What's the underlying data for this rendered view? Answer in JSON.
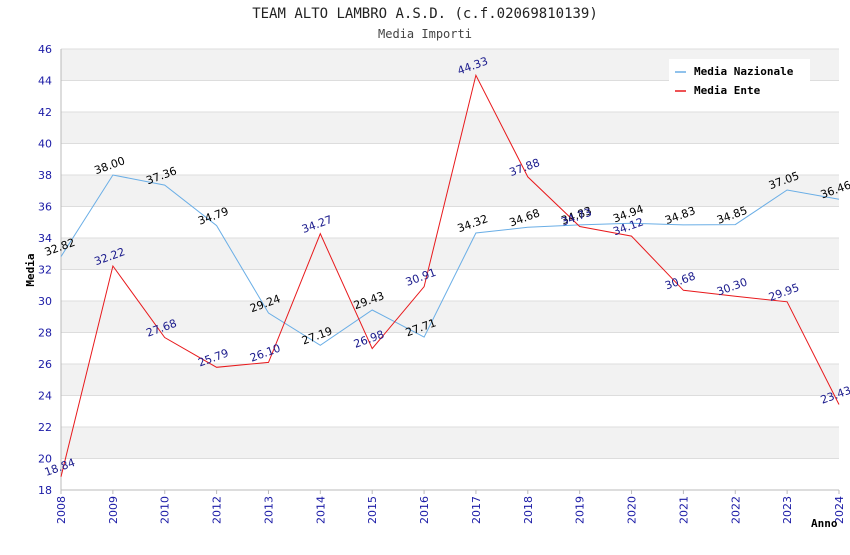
{
  "chart_data": {
    "type": "line",
    "title": "TEAM ALTO LAMBRO A.S.D. (c.f.02069810139)",
    "subtitle": "Media Importi",
    "xlabel": "Anno",
    "ylabel": "Media",
    "ylim": [
      18,
      46
    ],
    "yticks": [
      18,
      20,
      22,
      24,
      26,
      28,
      30,
      32,
      34,
      36,
      38,
      40,
      42,
      44,
      46
    ],
    "categories": [
      "2008",
      "2009",
      "2010",
      "2012",
      "2013",
      "2014",
      "2015",
      "2016",
      "2017",
      "2018",
      "2019",
      "2020",
      "2021",
      "2022",
      "2023",
      "2024"
    ],
    "grid": true,
    "legend_position": "top-right",
    "series": [
      {
        "name": "Media Nazionale",
        "color": "#6aaee6",
        "label_color": "#000000",
        "values": [
          32.82,
          38.0,
          37.36,
          34.79,
          29.24,
          27.19,
          29.43,
          27.71,
          34.32,
          34.68,
          34.83,
          34.94,
          34.83,
          34.85,
          37.05,
          36.46
        ],
        "labels": [
          "32.82",
          "38.00",
          "37.36",
          "34.79",
          "29.24",
          "27.19",
          "29.43",
          "27.71",
          "34.32",
          "34.68",
          "34.83",
          "34.94",
          "34.83",
          "34.85",
          "37.05",
          "36.46"
        ]
      },
      {
        "name": "Media Ente",
        "color": "#e8191c",
        "label_color": "#1a1a8c",
        "values": [
          18.84,
          32.22,
          27.68,
          25.79,
          26.1,
          34.27,
          26.98,
          30.91,
          44.33,
          37.88,
          34.73,
          34.12,
          30.68,
          30.3,
          29.95,
          23.43
        ],
        "labels": [
          "18.84",
          "32.22",
          "27.68",
          "25.79",
          "26.10",
          "34.27",
          "26.98",
          "30.91",
          "44.33",
          "37.88",
          "34.73",
          "34.12",
          "30.68",
          "30.30",
          "29.95",
          "23.43"
        ]
      }
    ]
  }
}
